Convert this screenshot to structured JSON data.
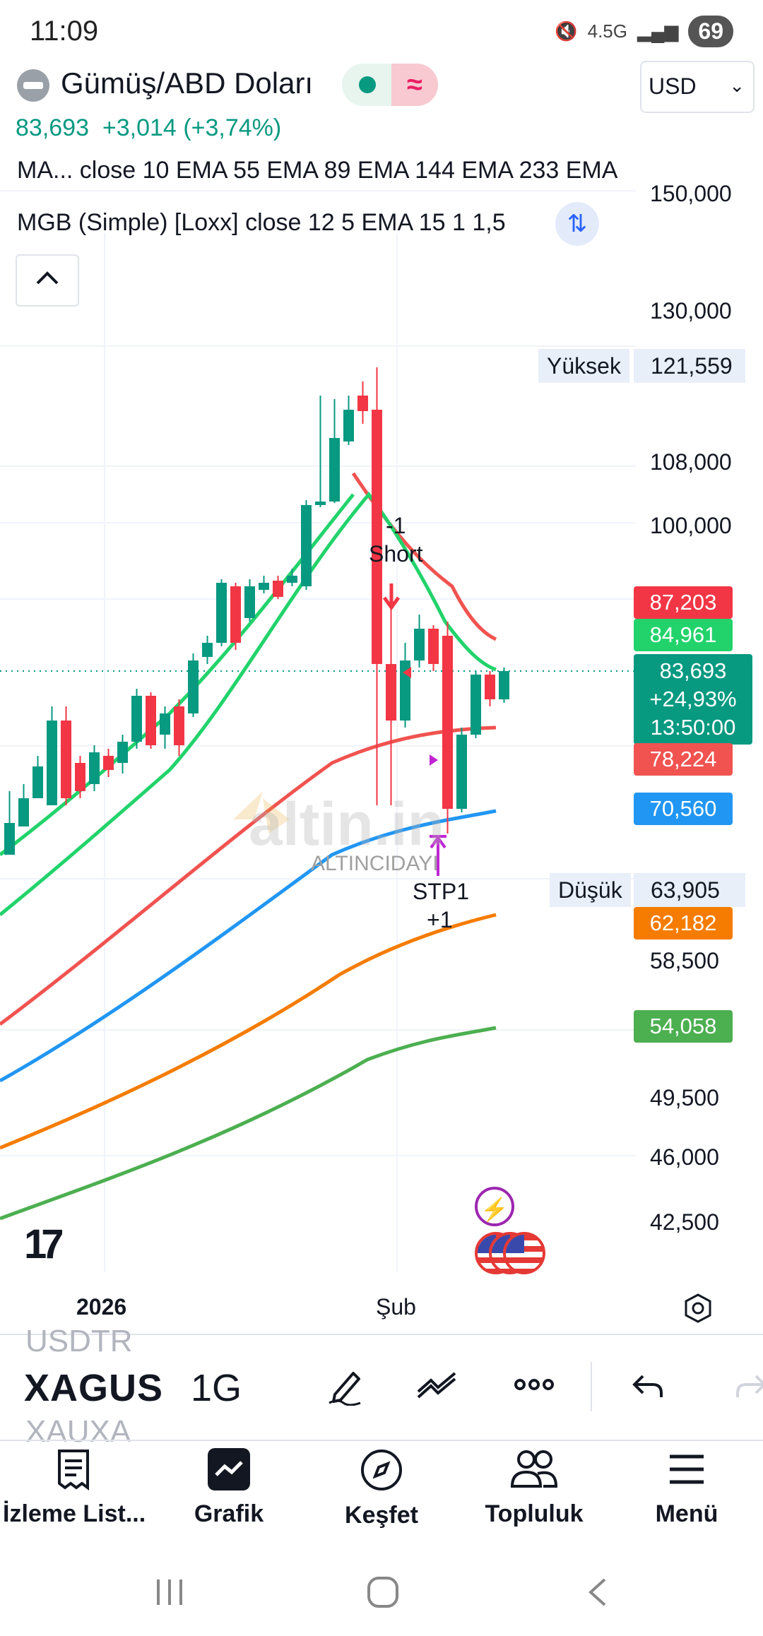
{
  "status_bar": {
    "time": "11:09",
    "network": "4.5G",
    "battery": "69"
  },
  "header": {
    "symbol_title": "Gümüş/ABD Doları",
    "currency": "USD",
    "price": "83,693",
    "change": "+3,014",
    "change_pct": "(+3,74%)",
    "indicator_1": "MA... close 10 EMA 55 EMA 89 EMA 144 EMA 233 EMA",
    "indicator_2": "MGB (Simple) [Loxx] close 12 5 EMA 15 1 1,5"
  },
  "chart": {
    "y_ticks": [
      "150,000",
      "130,000",
      "108,000",
      "100,000",
      "58,500",
      "49,500",
      "46,000",
      "42,500"
    ],
    "high_label": "Yüksek",
    "high_value": "121,559",
    "low_label": "Düşük",
    "low_value": "63,905",
    "tags": [
      {
        "value": "87,203",
        "color": "#f23645"
      },
      {
        "value": "84,961",
        "color": "#22d36b"
      },
      {
        "value": "78,224",
        "color": "#f05350"
      },
      {
        "value": "70,560",
        "color": "#2196f3"
      },
      {
        "value": "62,182",
        "color": "#f57c00"
      },
      {
        "value": "54,058",
        "color": "#4caf50"
      }
    ],
    "current": {
      "price": "83,693",
      "change_pct": "+24,93%",
      "countdown": "13:50:00"
    },
    "annotations": {
      "short_1": "-1",
      "short_2": "Short",
      "stp_1": "STP1",
      "stp_2": "+1"
    },
    "watermark": "altin.in",
    "watermark_sub": "ALTINCIDAYI",
    "x_labels": [
      "2026",
      "Şub"
    ],
    "tv_logo": "17"
  },
  "toolbar": {
    "symbol_prev": "USDTR",
    "symbol": "XAGUS",
    "symbol_next": "XAUXA",
    "interval": "1G"
  },
  "bottom_nav": [
    {
      "label": "İzleme List..."
    },
    {
      "label": "Grafik"
    },
    {
      "label": "Keşfet"
    },
    {
      "label": "Topluluk"
    },
    {
      "label": "Menü"
    }
  ]
}
